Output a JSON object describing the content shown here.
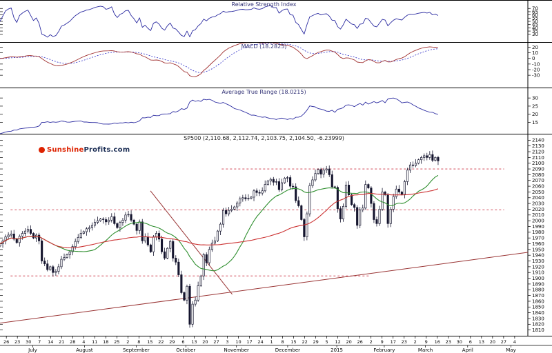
{
  "panels": {
    "rsi": {
      "title": "Relative Strength Index"
    },
    "macd": {
      "title": "MACD (18.2825)"
    },
    "atr": {
      "title": "Average True Range (18.0215)"
    },
    "price": {
      "title": "SP500 (2,110.68, 2,112.74, 2,103.75, 2,104.50, -6.23999)"
    }
  },
  "logo": {
    "part1": "Sunshine",
    "part2": "Profits.com"
  },
  "x_axis": {
    "day_ticks": [
      "26",
      "23",
      "30",
      "7",
      "14",
      "21",
      "28",
      "4",
      "11",
      "18",
      "25",
      "2",
      "8",
      "15",
      "22",
      "29",
      "6",
      "13",
      "20",
      "27",
      "3",
      "10",
      "17",
      "24",
      "1",
      "8",
      "15",
      "22",
      "29",
      "5",
      "12",
      "20",
      "26",
      "2",
      "9",
      "17",
      "23",
      "2",
      "9",
      "16",
      "23",
      "30",
      "6",
      "13",
      "20",
      "27",
      "4"
    ],
    "months": [
      {
        "label": "July",
        "pos": 0.062
      },
      {
        "label": "August",
        "pos": 0.16
      },
      {
        "label": "September",
        "pos": 0.258
      },
      {
        "label": "October",
        "pos": 0.352
      },
      {
        "label": "November",
        "pos": 0.448
      },
      {
        "label": "December",
        "pos": 0.545
      },
      {
        "label": "2015",
        "pos": 0.638
      },
      {
        "label": "February",
        "pos": 0.728
      },
      {
        "label": "March",
        "pos": 0.806
      },
      {
        "label": "April",
        "pos": 0.886
      },
      {
        "label": "May",
        "pos": 0.968
      }
    ]
  },
  "chart_data": {
    "type": "candlestick",
    "symbol": "SP500",
    "quote": {
      "open": "2,110.68",
      "high": "2,112.74",
      "low": "2,103.75",
      "close": "2,104.50",
      "change": "-6.23999"
    },
    "title": "SP500 (2,110.68, 2,112.74, 2,103.75, 2,104.50, -6.23999)",
    "x_range_label": "July 2014 through May 2015, price data ends late February 2015",
    "span_frac": 0.83,
    "price_axis_labels": [
      2140,
      2130,
      2120,
      2110,
      2100,
      2090,
      2080,
      2070,
      2060,
      2050,
      2040,
      2030,
      2020,
      2010,
      2000,
      1990,
      1980,
      1970,
      1960,
      1950,
      1940,
      1930,
      1920,
      1910,
      1900,
      1890,
      1880,
      1870,
      1860,
      1850,
      1840,
      1830,
      1820,
      1810
    ],
    "closes": [
      1960,
      1965,
      1972,
      1975,
      1977,
      1968,
      1962,
      1973,
      1978,
      1982,
      1985,
      1978,
      1970,
      1975,
      1965,
      1930,
      1925,
      1915,
      1920,
      1910,
      1912,
      1920,
      1933,
      1936,
      1941,
      1946,
      1955,
      1964,
      1971,
      1978,
      1981,
      1986,
      1988,
      1992,
      1997,
      2000,
      2003,
      2002,
      1998,
      2001,
      2007,
      1995,
      1988,
      1997,
      2001,
      2010,
      2011,
      2001,
      1994,
      1983,
      1998,
      1965,
      1972,
      1958,
      1946,
      1972,
      1978,
      1968,
      1946,
      1935,
      1952,
      1964,
      1935,
      1928,
      1906,
      1875,
      1862,
      1886,
      1820,
      1855,
      1862,
      1887,
      1904,
      1941,
      1927,
      1950,
      1961,
      1965,
      1982,
      1994,
      2018,
      2012,
      2018,
      2020,
      2024,
      2031,
      2038,
      2040,
      2038,
      2039,
      2041,
      2052,
      2049,
      2048,
      2052,
      2063,
      2069,
      2072,
      2067,
      2068,
      2054,
      2066,
      2074,
      2075,
      2060,
      2059,
      2035,
      2026,
      2002,
      1972,
      2012,
      2061,
      2071,
      2082,
      2089,
      2081,
      2088,
      2090,
      2080,
      2059,
      2058,
      2021,
      2003,
      2025,
      2062,
      2045,
      2028,
      2023,
      1992,
      2019,
      2022,
      2063,
      2057,
      2030,
      2002,
      1995,
      2020,
      2050,
      2045,
      1995,
      2020,
      2042,
      2055,
      2050,
      2046,
      2068,
      2088,
      2097,
      2096,
      2100,
      2106,
      2110,
      2113,
      2110,
      2115,
      2105,
      2110,
      2104
    ],
    "levels": [
      {
        "value": 2090,
        "x1": 0.42,
        "x2": 0.955
      },
      {
        "value": 2019,
        "x1": 0.02,
        "x2": 0.955
      },
      {
        "value": 1904,
        "x1": 0.02,
        "x2": 0.7
      }
    ],
    "trendlines": [
      {
        "x1": 0.0,
        "v1": 1822,
        "x2": 1.0,
        "v2": 1945
      },
      {
        "x1": 0.285,
        "v1": 2052,
        "x2": 0.44,
        "v2": 1872
      }
    ],
    "indicators": {
      "rsi": {
        "axis_labels": [
          70,
          65,
          60,
          55,
          50,
          45,
          40,
          35,
          30
        ]
      },
      "macd": {
        "axis_labels": [
          20,
          10,
          0,
          -10,
          -20,
          -30
        ]
      },
      "atr": {
        "axis_labels": [
          30,
          25,
          20,
          15
        ]
      }
    },
    "colors": {
      "rsi_line": "#2a2aa0",
      "macd_line": "#a03030",
      "macd_signal": "#4040cc",
      "atr_line": "#2a2aa0",
      "candle": "#15152e",
      "ma_fast": "#2f8f2f",
      "ma_slow": "#cc3333",
      "trendline": "#993333",
      "level_dashed": "#cc3344",
      "axis_text": "#000000",
      "logo_red": "#dd2200",
      "logo_dark": "#1c2e55"
    }
  }
}
